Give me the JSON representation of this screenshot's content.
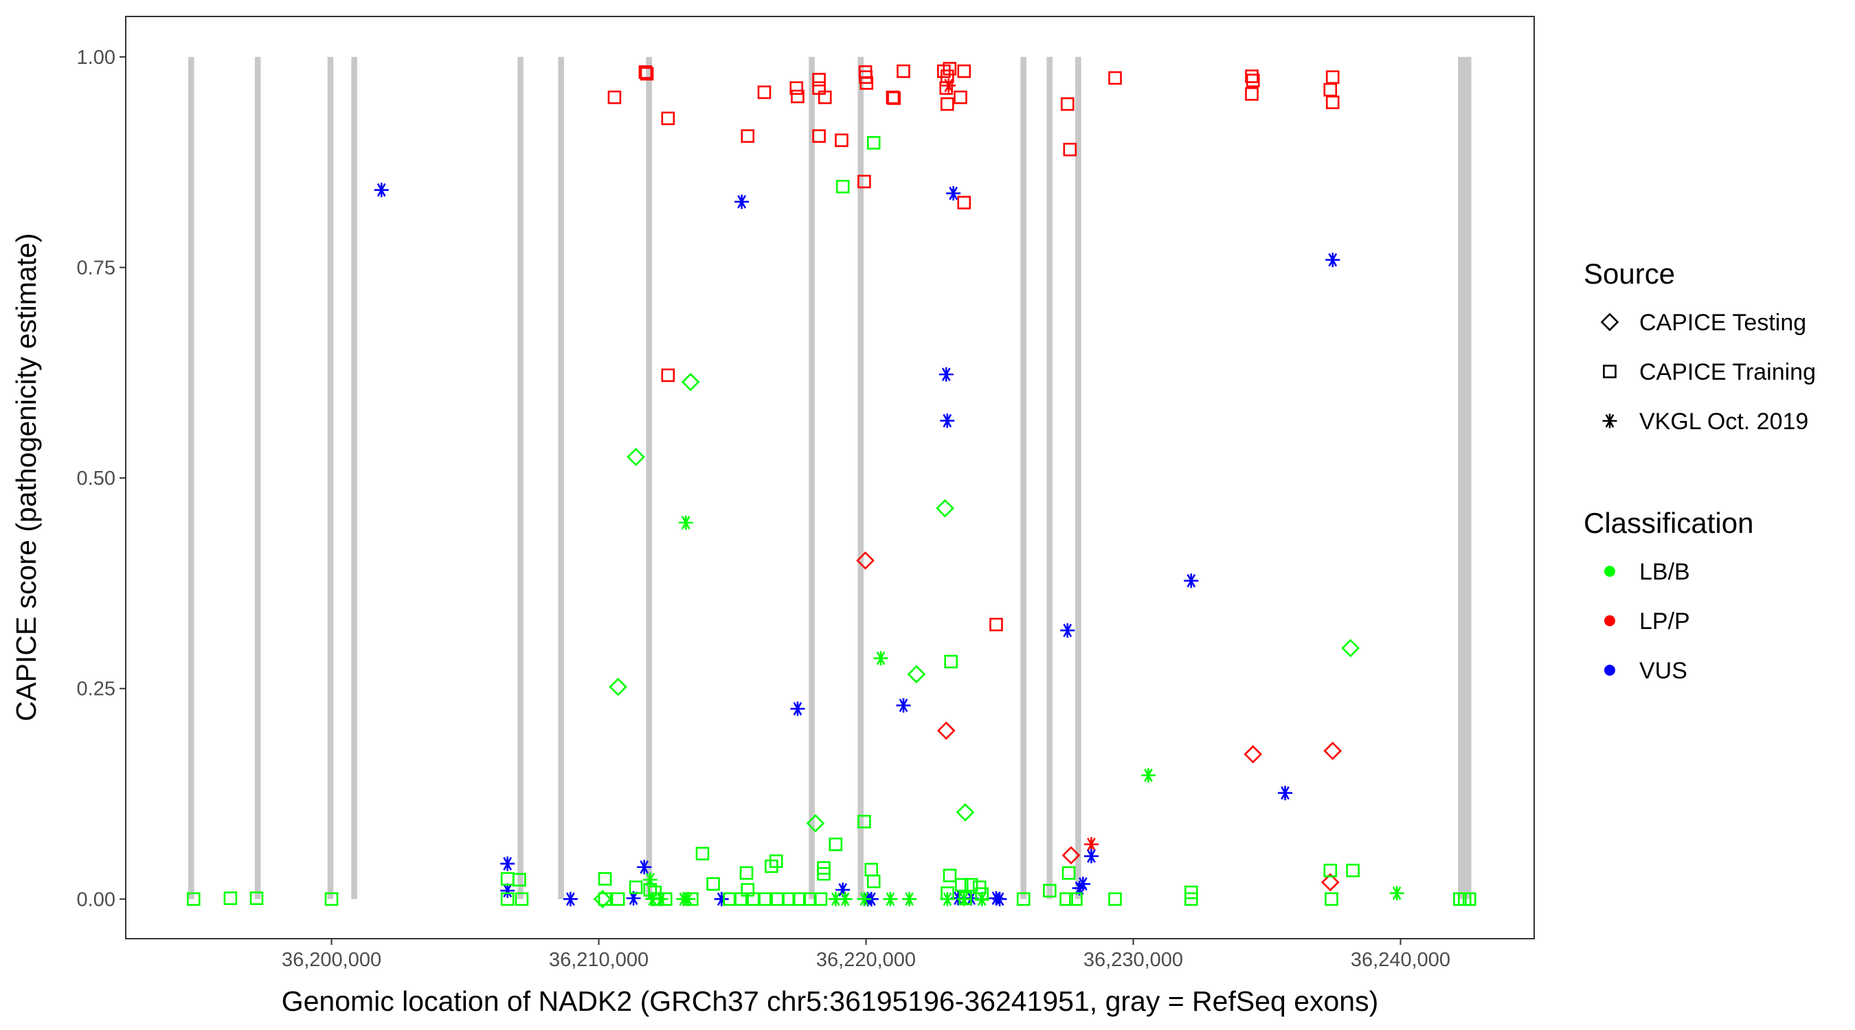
{
  "chart_data": {
    "type": "scatter",
    "xlabel": "Genomic location of NADK2 (GRCh37 chr5:36195196-36241951, gray = RefSeq exons)",
    "ylabel": "CAPICE score (pathogenicity estimate)",
    "xlim": [
      36192300,
      36245000
    ],
    "ylim": [
      -0.047,
      1.048
    ],
    "grid": false,
    "x_ticks": [
      36200000,
      36210000,
      36220000,
      36230000,
      36240000
    ],
    "x_tick_labels": [
      "36,200,000",
      "36,210,000",
      "36,220,000",
      "36,230,000",
      "36,240,000"
    ],
    "y_ticks": [
      0,
      0.25,
      0.5,
      0.75,
      1.0
    ],
    "y_tick_labels": [
      "0.00",
      "0.25",
      "0.50",
      "0.75",
      "1.00"
    ],
    "exon_color": "#c8c8c8",
    "exons": [
      [
        36194640,
        36194860
      ],
      [
        36197130,
        36197350
      ],
      [
        36199850,
        36200070
      ],
      [
        36200740,
        36200960
      ],
      [
        36206960,
        36207180
      ],
      [
        36208480,
        36208700
      ],
      [
        36211770,
        36211990
      ],
      [
        36217860,
        36218080
      ],
      [
        36219690,
        36219910
      ],
      [
        36225780,
        36226000
      ],
      [
        36226760,
        36226980
      ],
      [
        36227830,
        36228050
      ],
      [
        36242150,
        36242650
      ]
    ],
    "legend": {
      "position": "right",
      "source_title": "Source",
      "sources": [
        {
          "label": "CAPICE Testing",
          "shape": "diamond"
        },
        {
          "label": "CAPICE Training",
          "shape": "square"
        },
        {
          "label": "VKGL Oct. 2019",
          "shape": "asterisk"
        }
      ],
      "class_title": "Classification",
      "classes": [
        {
          "label": "LB/B",
          "color": "#00ff00"
        },
        {
          "label": "LP/P",
          "color": "#ff0000"
        },
        {
          "label": "VUS",
          "color": "#0000ff"
        }
      ]
    },
    "series": [
      {
        "source": "CAPICE Training",
        "class": "LP/P",
        "x": [
          36210589,
          36211745,
          36211800,
          36212591,
          36212591,
          36215572,
          36216194,
          36217396,
          36217440,
          36218241,
          36218241,
          36218463,
          36218241,
          36219086,
          36219932,
          36219976,
          36220020,
          36219990,
          36221000,
          36221044,
          36221400,
          36222912,
          36223040,
          36223000,
          36223040,
          36223130,
          36223535,
          36223669,
          36223669,
          36224870,
          36227539,
          36227630,
          36229319,
          36234435,
          36234480,
          36234435,
          36237372,
          36237461,
          36237461
        ],
        "y": [
          0.952,
          0.982,
          0.98,
          0.927,
          0.622,
          0.906,
          0.958,
          0.963,
          0.953,
          0.973,
          0.963,
          0.952,
          0.906,
          0.901,
          0.852,
          0.982,
          0.969,
          0.976,
          0.952,
          0.951,
          0.983,
          0.983,
          0.977,
          0.963,
          0.944,
          0.986,
          0.952,
          0.983,
          0.827,
          0.326,
          0.944,
          0.89,
          0.975,
          0.977,
          0.972,
          0.956,
          0.961,
          0.976,
          0.946
        ]
      },
      {
        "source": "VKGL Oct. 2019",
        "class": "LP/P",
        "x": [
          36223090,
          36228430
        ],
        "y": [
          0.966,
          0.065
        ]
      },
      {
        "source": "CAPICE Testing",
        "class": "LP/P",
        "x": [
          36219976,
          36223001,
          36227673,
          36234480,
          36237461,
          36237372
        ],
        "y": [
          0.402,
          0.2,
          0.052,
          0.172,
          0.176,
          0.02
        ]
      },
      {
        "source": "VKGL Oct. 2019",
        "class": "VUS",
        "x": [
          36201869,
          36215349,
          36223268,
          36237461,
          36223001,
          36223040,
          36232166,
          36227539,
          36217440,
          36221400,
          36235681,
          36206585,
          36206585,
          36208942,
          36211701,
          36211300,
          36214593,
          36219131,
          36220065,
          36220200,
          36223446,
          36223936,
          36224870,
          36225000,
          36227984,
          36228120,
          36228430
        ],
        "y": [
          0.842,
          0.828,
          0.838,
          0.759,
          0.623,
          0.568,
          0.378,
          0.319,
          0.226,
          0.23,
          0.126,
          0.042,
          0.01,
          0.0,
          0.038,
          0.001,
          0.0,
          0.011,
          0.0,
          0.0,
          0.001,
          0.001,
          0.001,
          0.0,
          0.013,
          0.018,
          0.051
        ]
      },
      {
        "source": "CAPICE Training",
        "class": "LB/B",
        "x": [
          36194839,
          36196218,
          36197197,
          36200000,
          36206585,
          36206585,
          36207029,
          36207118,
          36210233,
          36210233,
          36210722,
          36211389,
          36211923,
          36212101,
          36212190,
          36212500,
          36213480,
          36213881,
          36214281,
          36215527,
          36215572,
          36216461,
          36216639,
          36214900,
          36215300,
          36215800,
          36216200,
          36216700,
          36217100,
          36217500,
          36217900,
          36218300,
          36218419,
          36218419,
          36218863,
          36219932,
          36220198,
          36220287,
          36220287,
          36219131,
          36223179,
          36223135,
          36223046,
          36223580,
          36223936,
          36224247,
          36224336,
          36223714,
          36225893,
          36226872,
          36227584,
          36227495,
          36227851,
          36229319,
          36232166,
          36232166,
          36237372,
          36237416,
          36238217,
          36242221,
          36242399,
          36242577
        ],
        "y": [
          0.0,
          0.001,
          0.001,
          0.0,
          0.024,
          0.0,
          0.023,
          0.0,
          0.024,
          0.0,
          0.0,
          0.014,
          0.011,
          0.008,
          0.0,
          0.0,
          0.0,
          0.054,
          0.018,
          0.031,
          0.011,
          0.039,
          0.045,
          0.0,
          0.0,
          0.0,
          0.0,
          0.0,
          0.0,
          0.0,
          0.0,
          0.0,
          0.037,
          0.03,
          0.065,
          0.092,
          0.035,
          0.021,
          0.898,
          0.846,
          0.282,
          0.028,
          0.007,
          0.017,
          0.017,
          0.014,
          0.006,
          0.001,
          0.0,
          0.01,
          0.031,
          0.0,
          0.0,
          0.0,
          0.008,
          0.0,
          0.034,
          0.0,
          0.034,
          0.0,
          0.0,
          0.0
        ]
      },
      {
        "source": "CAPICE Testing",
        "class": "LB/B",
        "x": [
          36213436,
          36211389,
          36210722,
          36222957,
          36221889,
          36218108,
          36223713,
          36238128,
          36210144
        ],
        "y": [
          0.614,
          0.525,
          0.252,
          0.464,
          0.267,
          0.09,
          0.103,
          0.298,
          0.0
        ]
      },
      {
        "source": "VKGL Oct. 2019",
        "class": "LB/B",
        "x": [
          36213258,
          36220554,
          36230565,
          36239863,
          36211923,
          36212012,
          36212324,
          36213169,
          36213347,
          36220909,
          36221621,
          36223046,
          36223669,
          36224336,
          36218863,
          36219220,
          36219932
        ],
        "y": [
          0.447,
          0.286,
          0.147,
          0.007,
          0.023,
          0.0,
          0.0,
          0.0,
          0.0,
          0.0,
          0.0,
          0.0,
          0.0,
          0.0,
          0.0,
          0.0,
          0.0
        ]
      }
    ]
  }
}
